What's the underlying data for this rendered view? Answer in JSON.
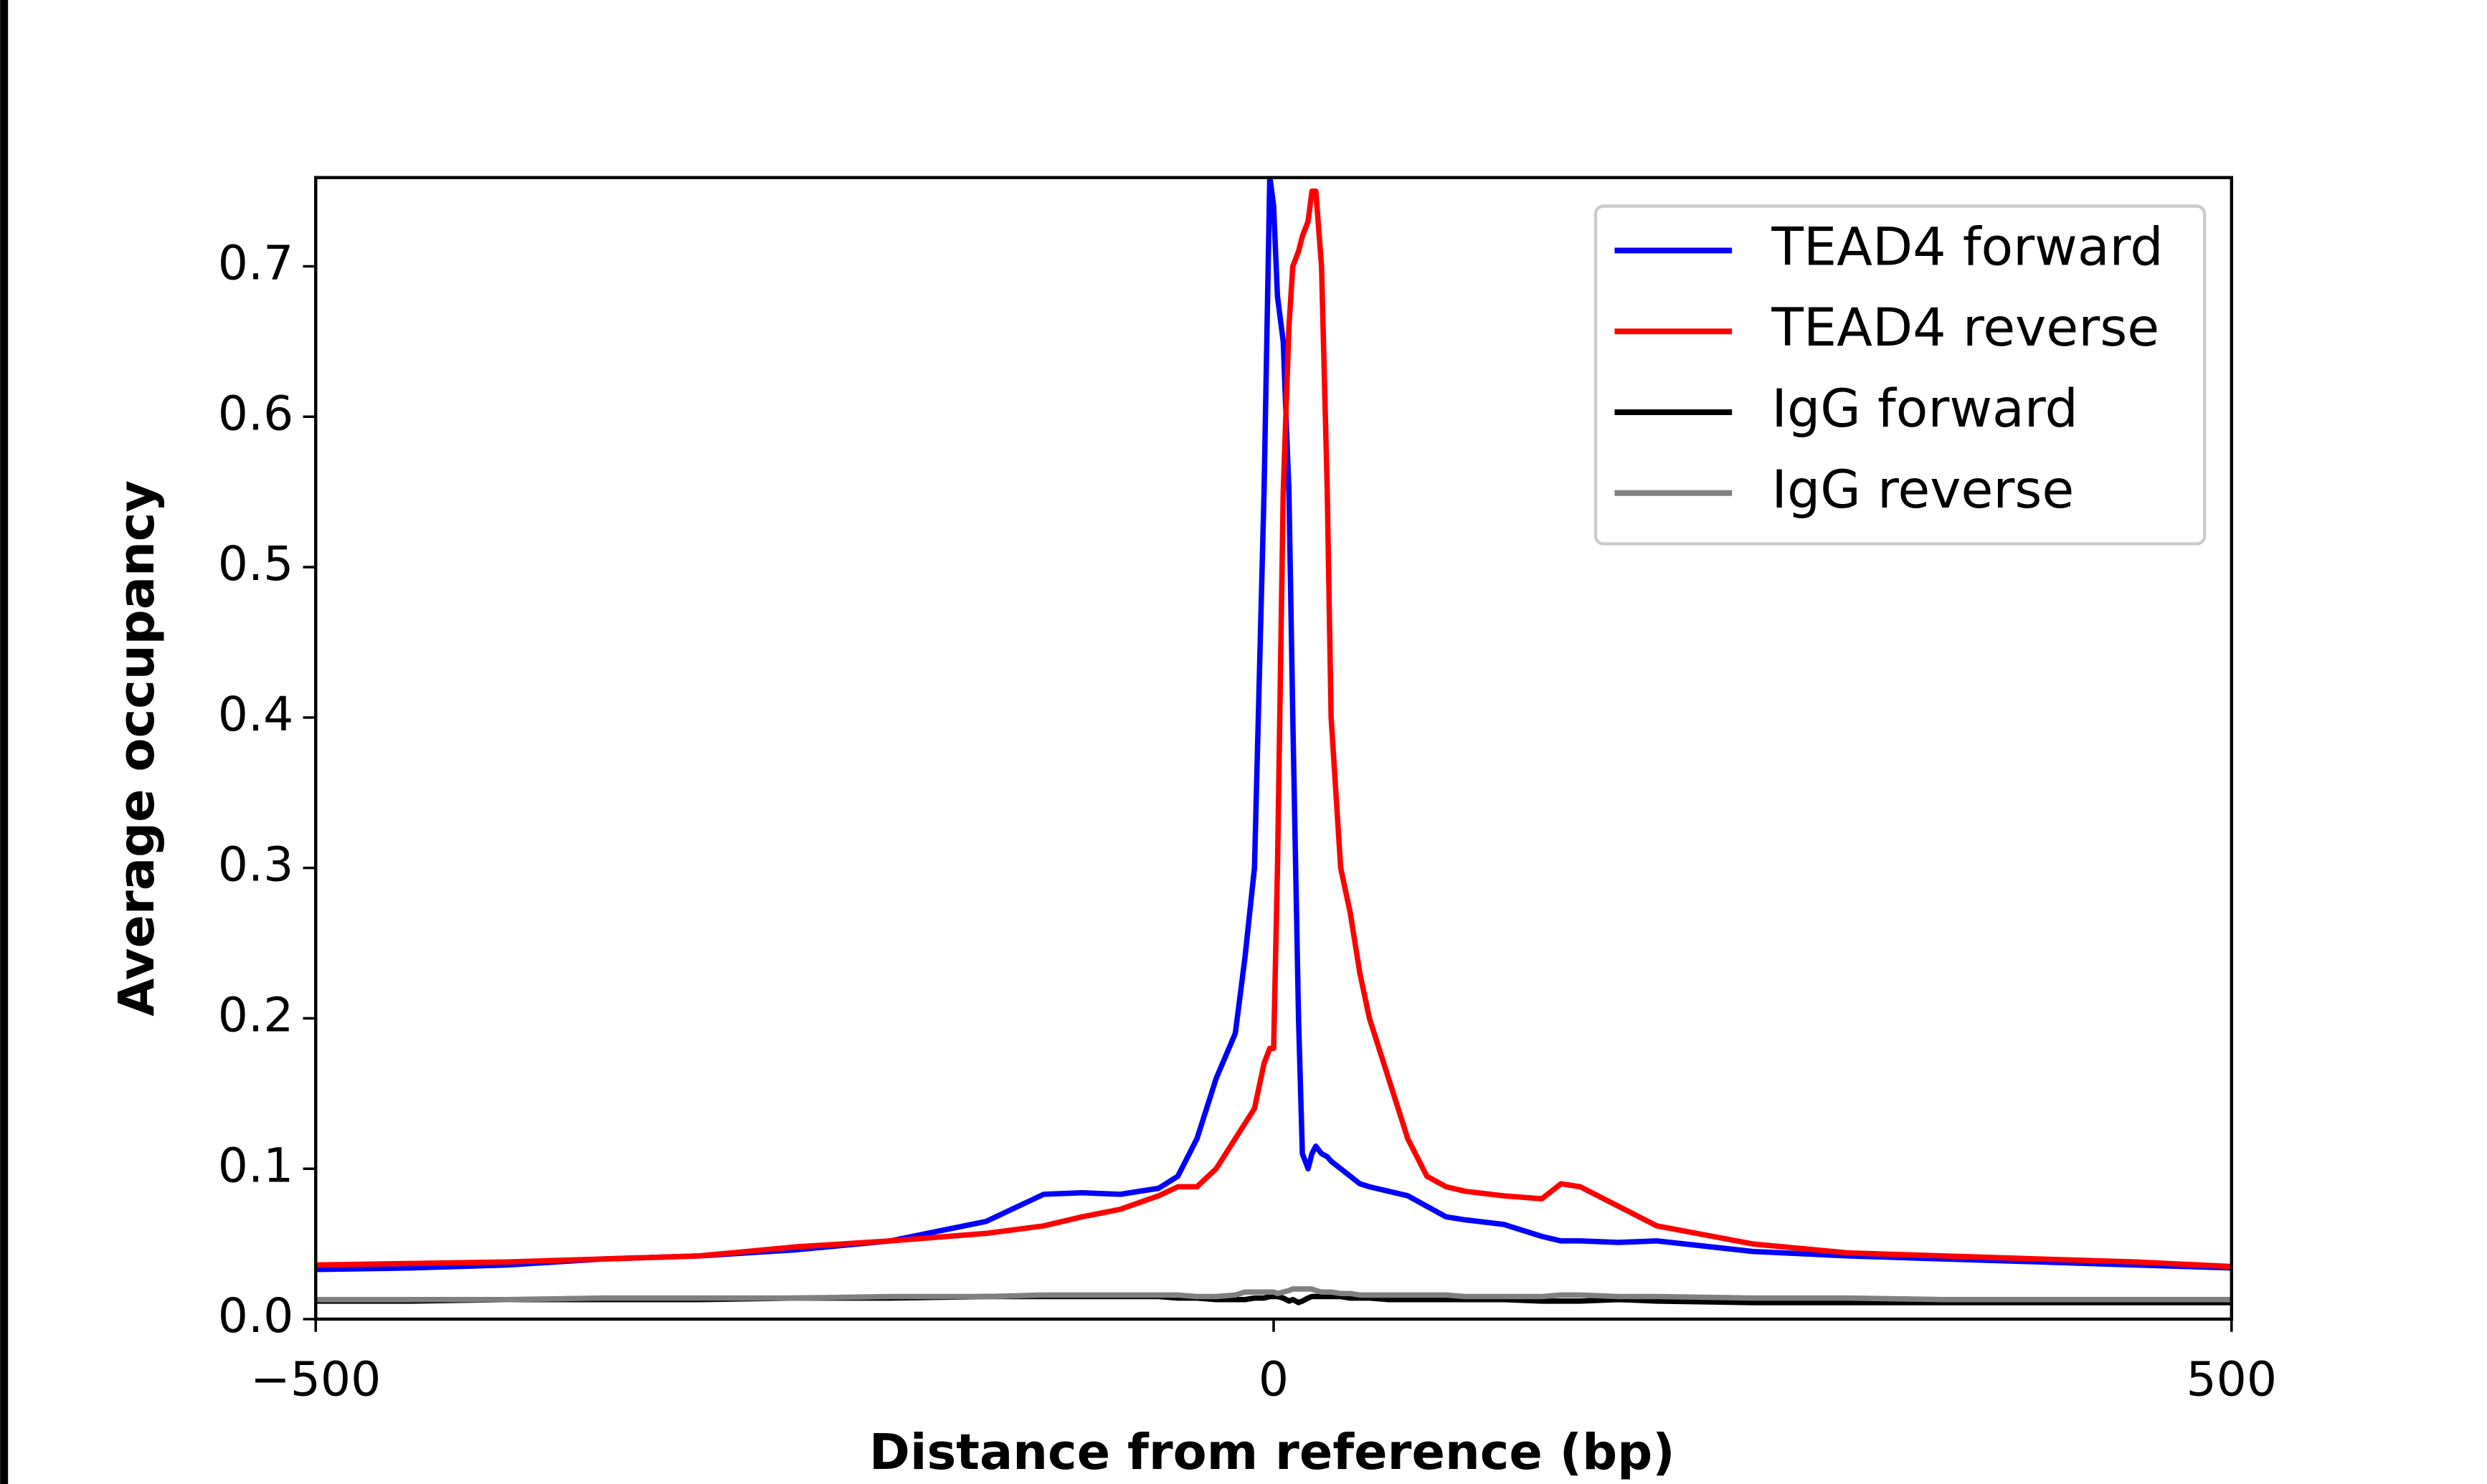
{
  "chart_data": {
    "type": "line",
    "xlabel": "Distance from reference (bp)",
    "ylabel": "Average occupancy",
    "x": [
      -500,
      -450,
      -400,
      -350,
      -300,
      -250,
      -200,
      -150,
      -120,
      -100,
      -80,
      -60,
      -50,
      -40,
      -30,
      -20,
      -15,
      -10,
      -5,
      -2,
      0,
      2,
      5,
      8,
      10,
      13,
      15,
      18,
      20,
      22,
      25,
      28,
      30,
      35,
      40,
      45,
      50,
      60,
      70,
      80,
      90,
      100,
      120,
      140,
      150,
      160,
      180,
      200,
      250,
      300,
      350,
      400,
      450,
      500
    ],
    "series": [
      {
        "name": "TEAD4 forward",
        "color": "#0000ff",
        "values": [
          0.033,
          0.034,
          0.036,
          0.04,
          0.042,
          0.046,
          0.052,
          0.065,
          0.083,
          0.084,
          0.083,
          0.087,
          0.095,
          0.12,
          0.16,
          0.19,
          0.24,
          0.3,
          0.55,
          0.76,
          0.74,
          0.68,
          0.65,
          0.55,
          0.4,
          0.2,
          0.11,
          0.1,
          0.11,
          0.115,
          0.11,
          0.108,
          0.105,
          0.1,
          0.095,
          0.09,
          0.088,
          0.085,
          0.082,
          0.075,
          0.068,
          0.066,
          0.063,
          0.055,
          0.052,
          0.052,
          0.051,
          0.052,
          0.045,
          0.042,
          0.04,
          0.038,
          0.036,
          0.034
        ]
      },
      {
        "name": "TEAD4 reverse",
        "color": "#ff0000",
        "values": [
          0.036,
          0.037,
          0.038,
          0.04,
          0.042,
          0.048,
          0.052,
          0.057,
          0.062,
          0.068,
          0.073,
          0.082,
          0.088,
          0.088,
          0.1,
          0.12,
          0.13,
          0.14,
          0.17,
          0.18,
          0.18,
          0.3,
          0.55,
          0.66,
          0.7,
          0.71,
          0.72,
          0.73,
          0.75,
          0.75,
          0.7,
          0.55,
          0.4,
          0.3,
          0.27,
          0.23,
          0.2,
          0.16,
          0.12,
          0.095,
          0.088,
          0.085,
          0.082,
          0.08,
          0.09,
          0.088,
          0.075,
          0.062,
          0.05,
          0.044,
          0.042,
          0.04,
          0.038,
          0.035
        ]
      },
      {
        "name": "IgG forward",
        "color": "#000000",
        "values": [
          0.012,
          0.012,
          0.013,
          0.013,
          0.013,
          0.014,
          0.014,
          0.015,
          0.015,
          0.015,
          0.015,
          0.015,
          0.014,
          0.014,
          0.013,
          0.013,
          0.013,
          0.014,
          0.014,
          0.015,
          0.015,
          0.015,
          0.014,
          0.012,
          0.013,
          0.011,
          0.012,
          0.014,
          0.015,
          0.015,
          0.015,
          0.015,
          0.015,
          0.015,
          0.014,
          0.014,
          0.014,
          0.013,
          0.013,
          0.013,
          0.013,
          0.013,
          0.013,
          0.012,
          0.012,
          0.012,
          0.013,
          0.012,
          0.011,
          0.011,
          0.011,
          0.011,
          0.011,
          0.011
        ]
      },
      {
        "name": "IgG reverse",
        "color": "#808080",
        "values": [
          0.013,
          0.013,
          0.013,
          0.014,
          0.014,
          0.014,
          0.015,
          0.015,
          0.016,
          0.016,
          0.016,
          0.016,
          0.016,
          0.015,
          0.015,
          0.016,
          0.018,
          0.018,
          0.018,
          0.018,
          0.018,
          0.017,
          0.018,
          0.019,
          0.02,
          0.02,
          0.02,
          0.02,
          0.02,
          0.019,
          0.018,
          0.018,
          0.018,
          0.017,
          0.017,
          0.016,
          0.016,
          0.016,
          0.016,
          0.016,
          0.016,
          0.015,
          0.015,
          0.015,
          0.016,
          0.016,
          0.015,
          0.015,
          0.014,
          0.014,
          0.013,
          0.013,
          0.013,
          0.013
        ]
      }
    ],
    "xlim": [
      -500,
      500
    ],
    "xticks": [
      {
        "value": -500,
        "label": "−500"
      },
      0,
      500
    ],
    "ylim": [
      0,
      0.759
    ],
    "yticks": [
      {
        "value": 0,
        "label": "0.0"
      },
      0.1,
      0.2,
      0.3,
      0.4,
      0.5,
      0.6,
      0.7
    ],
    "legend": "upper right"
  }
}
